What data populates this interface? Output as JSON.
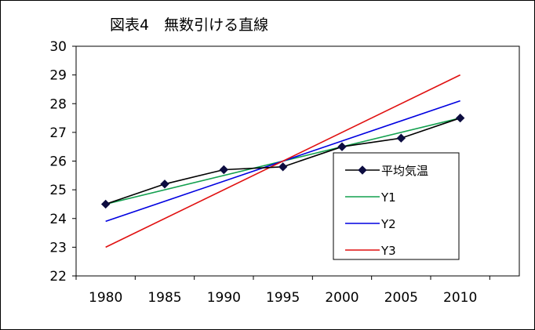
{
  "chart_data": {
    "type": "line",
    "title": "図表4　無数引ける直線",
    "x": [
      1980,
      1985,
      1990,
      1995,
      2000,
      2005,
      2010
    ],
    "x_ticks": [
      "1980",
      "1985",
      "1990",
      "1995",
      "2000",
      "2005",
      "2010"
    ],
    "y_ticks": [
      "22",
      "23",
      "24",
      "25",
      "26",
      "27",
      "28",
      "29",
      "30"
    ],
    "xlim": [
      1977.5,
      2015
    ],
    "ylim": [
      22,
      30
    ],
    "grid": false,
    "legend_position": "right",
    "series": [
      {
        "name": "平均気温",
        "color": "#000000",
        "marker": "diamond",
        "markerColor": "#0d0d40",
        "values": [
          24.5,
          25.2,
          25.7,
          25.8,
          26.5,
          26.8,
          27.5
        ]
      },
      {
        "name": "Y1",
        "color": "#13a04f",
        "marker": "none",
        "values": [
          24.5,
          null,
          null,
          null,
          null,
          null,
          27.5
        ]
      },
      {
        "name": "Y2",
        "color": "#0000e0",
        "marker": "none",
        "values": [
          23.9,
          null,
          null,
          null,
          null,
          null,
          28.1
        ]
      },
      {
        "name": "Y3",
        "color": "#e01010",
        "marker": "none",
        "values": [
          23.0,
          null,
          null,
          null,
          null,
          null,
          29.0
        ]
      }
    ]
  }
}
